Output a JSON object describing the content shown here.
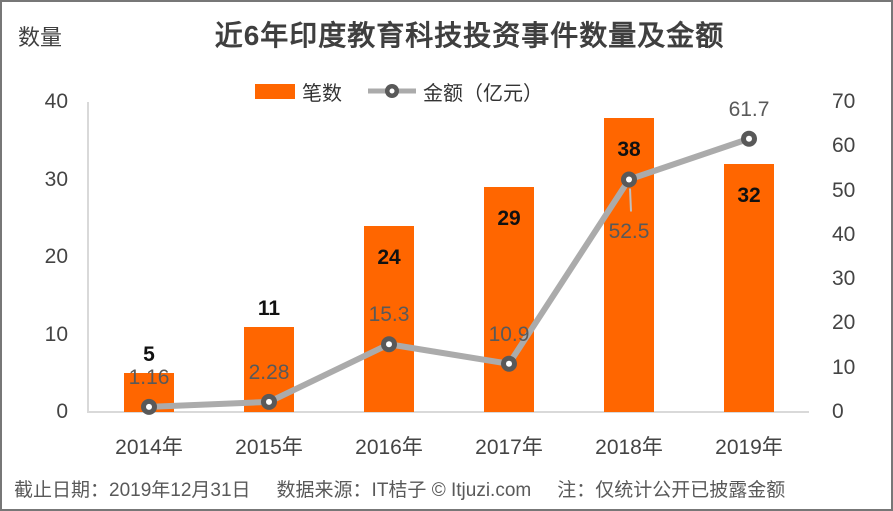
{
  "page": {
    "footer": {
      "date": "截止日期：2019年12月31日",
      "source": "数据来源：IT桔子 © Itjuzi.com",
      "note": "注：仅统计公开已披露金额"
    }
  },
  "chart_data": {
    "type": "combo-bar-line",
    "title": "近6年印度教育科技投资事件数量及金额",
    "categories": [
      "2014年",
      "2015年",
      "2016年",
      "2017年",
      "2018年",
      "2019年"
    ],
    "series": [
      {
        "name": "笔数",
        "type": "bar",
        "axis": "left",
        "color": "#FF6600",
        "values": [
          5,
          11,
          24,
          29,
          38,
          32
        ],
        "labels": [
          "5",
          "11",
          "24",
          "29",
          "38",
          "32"
        ]
      },
      {
        "name": "金额（亿元）",
        "type": "line",
        "axis": "right",
        "color": "#ABABAB",
        "marker_color": "#595959",
        "values": [
          1.16,
          2.28,
          15.3,
          10.9,
          52.5,
          61.7
        ],
        "labels": [
          "1.16",
          "2.28",
          "15.3",
          "10.9",
          "52.5",
          "61.7"
        ],
        "label_positions": [
          "above",
          "above",
          "above",
          "above",
          "below",
          "above"
        ]
      }
    ],
    "left_axis": {
      "title": "数量",
      "min": 0,
      "max": 40,
      "step": 10,
      "ticks": [
        "40",
        "30",
        "20",
        "10",
        "0"
      ]
    },
    "right_axis": {
      "min": 0,
      "max": 70,
      "step": 10,
      "ticks": [
        "70",
        "60",
        "50",
        "40",
        "30",
        "20",
        "10",
        "0"
      ]
    },
    "legend_position": "top",
    "grid": false,
    "footer": "截止日期：2019年12月31日　数据来源：IT桔子 © Itjuzi.com　注：仅统计公开已披露金额"
  }
}
